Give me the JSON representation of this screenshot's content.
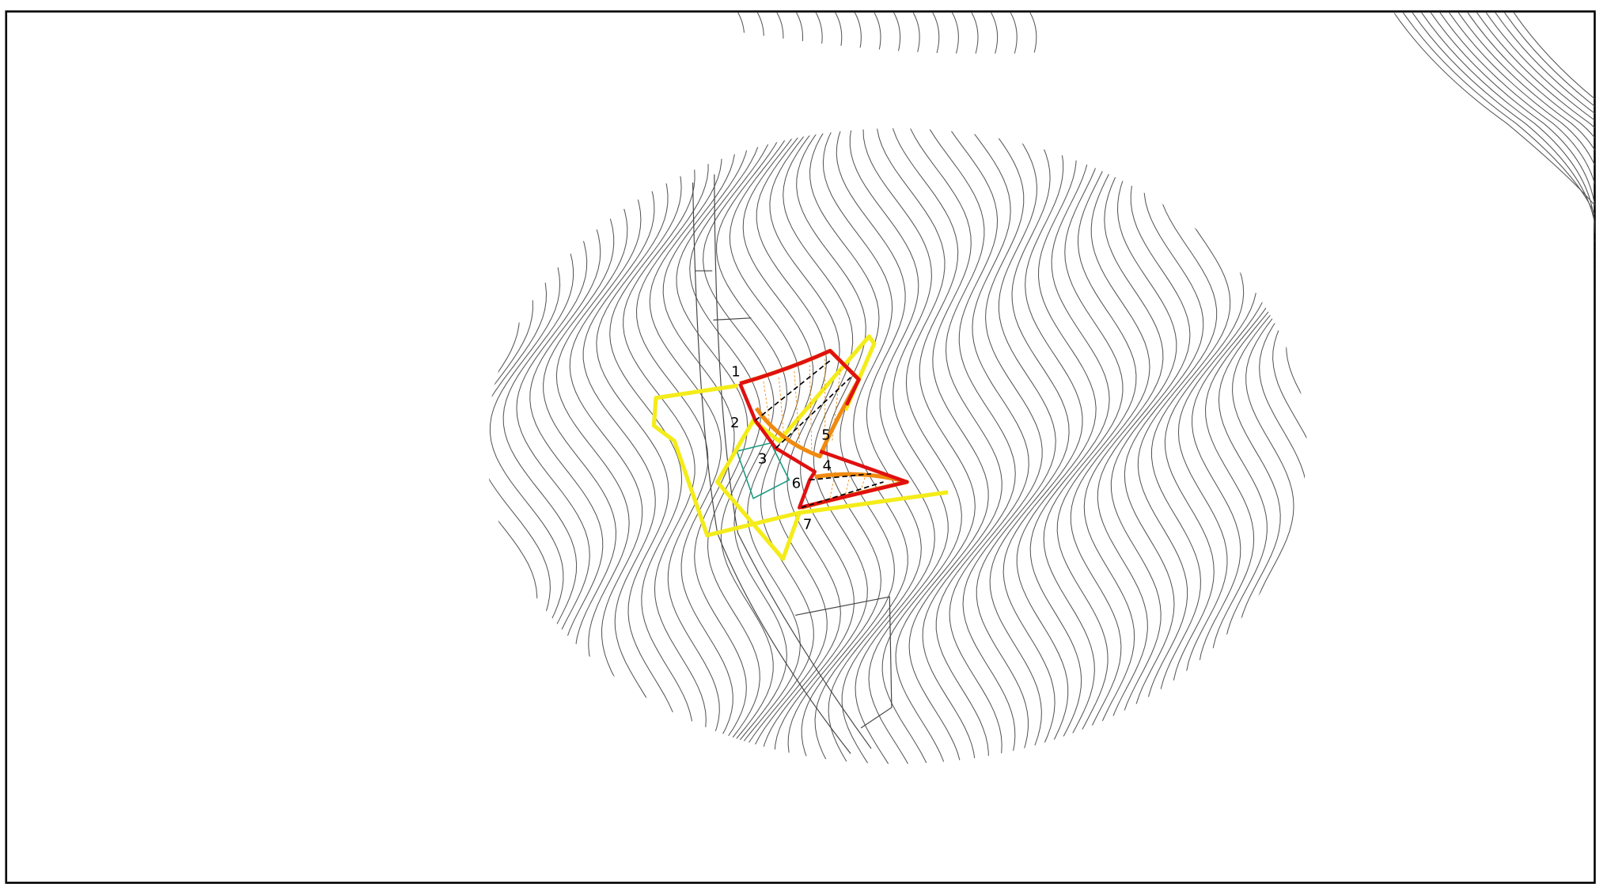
{
  "map": {
    "point_labels": [
      "1",
      "2",
      "3",
      "4",
      "5",
      "6",
      "7"
    ]
  }
}
